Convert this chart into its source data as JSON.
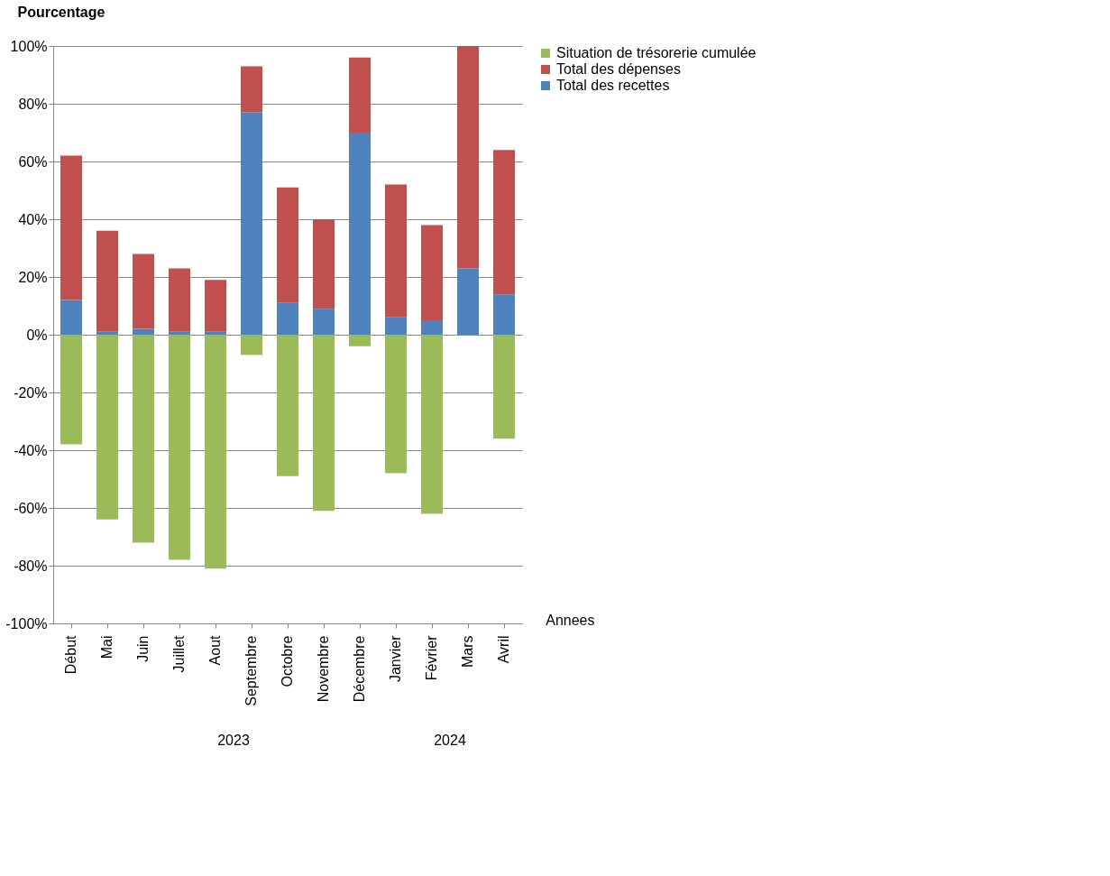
{
  "chart_data": {
    "type": "bar",
    "stacked": true,
    "ylabel": "Pourcentage",
    "xlabel": "Annees",
    "categories": [
      "Début",
      "Mai",
      "Juin",
      "Juillet",
      "Aout",
      "Septembre",
      "Octobre",
      "Novembre",
      "Décembre",
      "Janvier",
      "Février",
      "Mars",
      "Avril"
    ],
    "series": [
      {
        "name": "Total des recettes",
        "color": "#4f81bd",
        "values": [
          12,
          1,
          2,
          1,
          1,
          77,
          11,
          9,
          70,
          6,
          5,
          23,
          14
        ]
      },
      {
        "name": "Total des dépenses",
        "color": "#c0504d",
        "values": [
          50,
          35,
          26,
          22,
          18,
          16,
          40,
          31,
          26,
          46,
          33,
          77,
          50
        ]
      },
      {
        "name": "Situation de trésorerie cumulée",
        "color": "#9bbb59",
        "values": [
          -38,
          -64,
          -72,
          -78,
          -81,
          -7,
          -49,
          -61,
          -4,
          -48,
          -62,
          0,
          -36
        ]
      }
    ],
    "ylim": [
      -100,
      100
    ],
    "yticks": [
      {
        "value": -100,
        "label": "-100%"
      },
      {
        "value": -80,
        "label": "-80%"
      },
      {
        "value": -60,
        "label": "-60%"
      },
      {
        "value": -40,
        "label": "-40%"
      },
      {
        "value": -20,
        "label": "-20%"
      },
      {
        "value": 0,
        "label": "0%"
      },
      {
        "value": 20,
        "label": "20%"
      },
      {
        "value": 40,
        "label": "40%"
      },
      {
        "value": 60,
        "label": "60%"
      },
      {
        "value": 80,
        "label": "80%"
      },
      {
        "value": 100,
        "label": "100%"
      }
    ],
    "annotations": [
      "2023",
      "2024"
    ],
    "grid": "y",
    "legend": "right"
  }
}
